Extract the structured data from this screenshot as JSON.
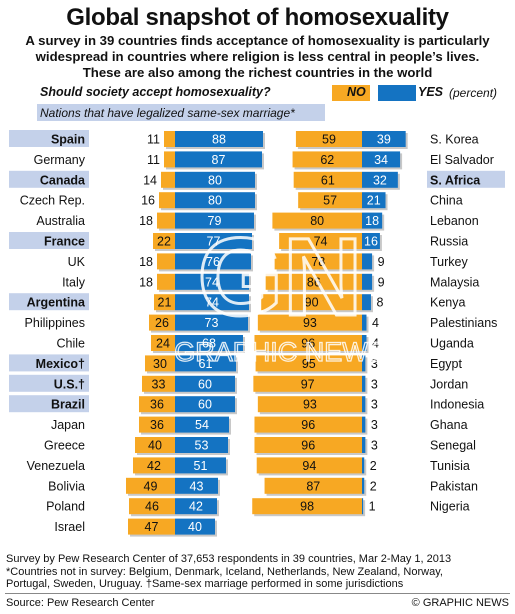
{
  "title": "Global snapshot of homosexuality",
  "subtitle": [
    "A survey in 39 countries finds acceptance of homosexuality is particularly",
    "widespread in countries where religion is less central in people’s lives.",
    "These are also among the richest countries in the world"
  ],
  "legend": {
    "question": "Should society accept homosexuality?",
    "no_label": "NO",
    "yes_label": "YES",
    "percent_label": "(percent)",
    "marriage_note": "Nations that have legalized same-sex marriage*",
    "no_color": "#f7a823",
    "yes_color": "#1473c2",
    "highlight_color": "#c4d1ea"
  },
  "chart_data": {
    "type": "bar",
    "title": "Should society accept homosexuality?",
    "unit": "percent",
    "series_names": [
      "NO",
      "YES"
    ],
    "left_panel": [
      {
        "country": "Spain",
        "no": 11,
        "yes": 88,
        "same_sex_marriage": true
      },
      {
        "country": "Germany",
        "no": 11,
        "yes": 87,
        "same_sex_marriage": false
      },
      {
        "country": "Canada",
        "no": 14,
        "yes": 80,
        "same_sex_marriage": true
      },
      {
        "country": "Czech Rep.",
        "no": 16,
        "yes": 80,
        "same_sex_marriage": false
      },
      {
        "country": "Australia",
        "no": 18,
        "yes": 79,
        "same_sex_marriage": false
      },
      {
        "country": "France",
        "no": 22,
        "yes": 77,
        "same_sex_marriage": true
      },
      {
        "country": "UK",
        "no": 18,
        "yes": 76,
        "same_sex_marriage": false
      },
      {
        "country": "Italy",
        "no": 18,
        "yes": 74,
        "same_sex_marriage": false
      },
      {
        "country": "Argentina",
        "no": 21,
        "yes": 74,
        "same_sex_marriage": true
      },
      {
        "country": "Philippines",
        "no": 26,
        "yes": 73,
        "same_sex_marriage": false
      },
      {
        "country": "Chile",
        "no": 24,
        "yes": 68,
        "same_sex_marriage": false
      },
      {
        "country": "Mexico†",
        "no": 30,
        "yes": 61,
        "same_sex_marriage": true
      },
      {
        "country": "U.S.†",
        "no": 33,
        "yes": 60,
        "same_sex_marriage": true
      },
      {
        "country": "Brazil",
        "no": 36,
        "yes": 60,
        "same_sex_marriage": true
      },
      {
        "country": "Japan",
        "no": 36,
        "yes": 54,
        "same_sex_marriage": false
      },
      {
        "country": "Greece",
        "no": 40,
        "yes": 53,
        "same_sex_marriage": false
      },
      {
        "country": "Venezuela",
        "no": 42,
        "yes": 51,
        "same_sex_marriage": false
      },
      {
        "country": "Bolivia",
        "no": 49,
        "yes": 43,
        "same_sex_marriage": false
      },
      {
        "country": "Poland",
        "no": 46,
        "yes": 42,
        "same_sex_marriage": false
      },
      {
        "country": "Israel",
        "no": 47,
        "yes": 40,
        "same_sex_marriage": false
      }
    ],
    "right_panel": [
      {
        "country": "S. Korea",
        "no": 59,
        "yes": 39,
        "same_sex_marriage": false
      },
      {
        "country": "El Salvador",
        "no": 62,
        "yes": 34,
        "same_sex_marriage": false
      },
      {
        "country": "S. Africa",
        "no": 61,
        "yes": 32,
        "same_sex_marriage": true
      },
      {
        "country": "China",
        "no": 57,
        "yes": 21,
        "same_sex_marriage": false
      },
      {
        "country": "Lebanon",
        "no": 80,
        "yes": 18,
        "same_sex_marriage": false
      },
      {
        "country": "Russia",
        "no": 74,
        "yes": 16,
        "same_sex_marriage": false
      },
      {
        "country": "Turkey",
        "no": 78,
        "yes": 9,
        "same_sex_marriage": false
      },
      {
        "country": "Malaysia",
        "no": 86,
        "yes": 9,
        "same_sex_marriage": false
      },
      {
        "country": "Kenya",
        "no": 90,
        "yes": 8,
        "same_sex_marriage": false
      },
      {
        "country": "Palestinians",
        "no": 93,
        "yes": 4,
        "same_sex_marriage": false
      },
      {
        "country": "Uganda",
        "no": 96,
        "yes": 4,
        "same_sex_marriage": false
      },
      {
        "country": "Egypt",
        "no": 95,
        "yes": 3,
        "same_sex_marriage": false
      },
      {
        "country": "Jordan",
        "no": 97,
        "yes": 3,
        "same_sex_marriage": false
      },
      {
        "country": "Indonesia",
        "no": 93,
        "yes": 3,
        "same_sex_marriage": false
      },
      {
        "country": "Ghana",
        "no": 96,
        "yes": 3,
        "same_sex_marriage": false
      },
      {
        "country": "Senegal",
        "no": 96,
        "yes": 3,
        "same_sex_marriage": false
      },
      {
        "country": "Tunisia",
        "no": 94,
        "yes": 2,
        "same_sex_marriage": false
      },
      {
        "country": "Pakistan",
        "no": 87,
        "yes": 2,
        "same_sex_marriage": false
      },
      {
        "country": "Nigeria",
        "no": 98,
        "yes": 1,
        "same_sex_marriage": false
      }
    ]
  },
  "footer": {
    "lines": [
      "Survey by Pew Research Center of 37,653 respondents in 39 countries, Mar 2-May 1, 2013",
      "*Countries not in survey: Belgium, Denmark, Iceland, Netherlands, New Zealand, Norway,",
      "Portugal, Sweden, Uruguay. †Same-sex marriage performed in some jurisdictions"
    ],
    "source": "Source: Pew Research Center",
    "credit": "© GRAPHIC NEWS"
  },
  "watermark": {
    "logo_text": "GN",
    "text": "GRAPHIC NEWS"
  }
}
